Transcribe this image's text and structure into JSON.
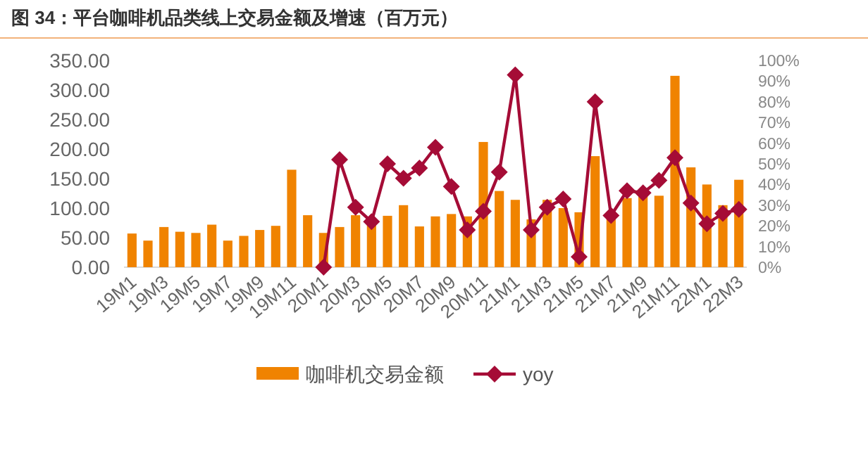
{
  "chart_data": {
    "type": "bar",
    "title": "图 34：平台咖啡机品类线上交易金额及增速（百万元）",
    "categories": [
      "19M1",
      null,
      "19M3",
      null,
      "19M5",
      null,
      "19M7",
      null,
      "19M9",
      null,
      "19M11",
      null,
      "20M1",
      null,
      "20M3",
      null,
      "20M5",
      null,
      "20M7",
      null,
      "20M9",
      null,
      "20M11",
      null,
      "21M1",
      null,
      "21M3",
      null,
      "21M5",
      null,
      "21M7",
      null,
      "21M9",
      null,
      "21M11",
      null,
      "22M1",
      null,
      "22M3"
    ],
    "series": [
      {
        "name": "咖啡机交易金额",
        "color": "#f08300",
        "values": [
          57,
          45,
          68,
          60,
          58,
          72,
          45,
          53,
          63,
          70,
          165,
          88,
          58,
          68,
          88,
          75,
          87,
          105,
          69,
          86,
          90,
          86,
          212,
          129,
          114,
          81,
          114,
          100,
          93,
          188,
          85,
          117,
          121,
          121,
          324,
          169,
          140,
          105,
          148
        ]
      },
      {
        "name": "yoy",
        "type": "line",
        "axis": "y2",
        "color": "#a50c36",
        "marker": "diamond",
        "values": [
          null,
          null,
          null,
          null,
          null,
          null,
          null,
          null,
          null,
          null,
          null,
          null,
          0,
          52,
          29,
          22,
          50,
          43,
          48,
          58,
          39,
          18,
          27,
          46,
          93,
          18,
          29,
          33,
          5,
          80,
          25,
          37,
          36,
          42,
          53,
          31,
          21,
          26,
          28
        ]
      }
    ],
    "ylim": [
      0,
      350
    ],
    "yticks": [
      {
        "value": 0,
        "label": "0.00"
      },
      {
        "value": 50,
        "label": "50.00"
      },
      {
        "value": 100,
        "label": "100.00"
      },
      {
        "value": 150,
        "label": "150.00"
      },
      {
        "value": 200,
        "label": "200.00"
      },
      {
        "value": 250,
        "label": "250.00"
      },
      {
        "value": 300,
        "label": "300.00"
      },
      {
        "value": 350,
        "label": "350.00"
      }
    ],
    "y2lim": [
      0,
      100
    ],
    "y2ticks": [
      {
        "value": 0,
        "label": "0%"
      },
      {
        "value": 10,
        "label": "10%"
      },
      {
        "value": 20,
        "label": "20%"
      },
      {
        "value": 30,
        "label": "30%"
      },
      {
        "value": 40,
        "label": "40%"
      },
      {
        "value": 50,
        "label": "50%"
      },
      {
        "value": 60,
        "label": "60%"
      },
      {
        "value": 70,
        "label": "70%"
      },
      {
        "value": 80,
        "label": "80%"
      },
      {
        "value": 90,
        "label": "90%"
      },
      {
        "value": 100,
        "label": "100%"
      }
    ],
    "legend": "bottom"
  }
}
